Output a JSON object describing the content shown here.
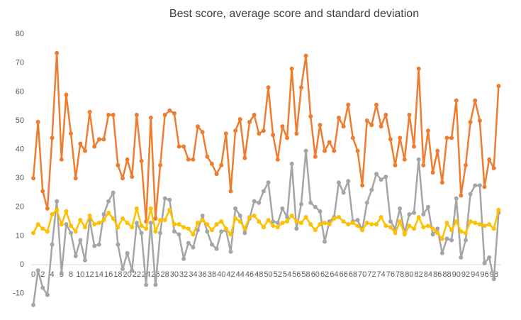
{
  "chart_data": {
    "type": "line",
    "title": "Best score, average score and standard deviation",
    "categories": [
      0,
      null,
      2,
      null,
      4,
      null,
      6,
      null,
      8,
      null,
      10,
      null,
      12,
      null,
      14,
      null,
      16,
      null,
      18,
      null,
      20,
      null,
      22,
      null,
      24,
      null,
      26,
      null,
      28,
      null,
      30,
      null,
      32,
      null,
      34,
      null,
      36,
      null,
      38,
      null,
      40,
      null,
      42,
      null,
      44,
      null,
      46,
      null,
      48,
      null,
      50,
      null,
      52,
      null,
      54,
      null,
      56,
      null,
      58,
      null,
      60,
      null,
      62,
      null,
      64,
      null,
      66,
      null,
      68,
      null,
      70,
      null,
      72,
      null,
      74,
      null,
      76,
      null,
      78,
      null,
      80,
      null,
      82,
      null,
      84,
      null,
      86,
      null,
      88,
      null,
      90,
      null,
      92,
      null,
      94,
      null,
      96,
      null,
      98,
      null
    ],
    "series": [
      {
        "color": "#ED7D31",
        "values": [
          30,
          49.5,
          25.5,
          19.5,
          44,
          73.5,
          36.5,
          59,
          45.5,
          30,
          42,
          39.5,
          53,
          41,
          43.5,
          43.5,
          52,
          52,
          34.5,
          30,
          36.5,
          30.5,
          52,
          36,
          15,
          51,
          16,
          34.5,
          52,
          53.5,
          52.5,
          41,
          41,
          36.5,
          36.5,
          48,
          46,
          37.5,
          35,
          31.5,
          34.5,
          45.5,
          25.5,
          46.5,
          50.5,
          37,
          49.5,
          52,
          45.5,
          46.5,
          61.5,
          45,
          36.5,
          48,
          44,
          68,
          45.5,
          61.5,
          72.5,
          51.5,
          37.5,
          48.5,
          39.5,
          42.5,
          39.5,
          51,
          48,
          55.5,
          44,
          39.5,
          27.5,
          50,
          48.5,
          55.5,
          48,
          52,
          43.5,
          34.5,
          44,
          36.5,
          52,
          41,
          68,
          34.5,
          46.5,
          32,
          39.5,
          28.5,
          44,
          44,
          57,
          24,
          34.5,
          49.5,
          57,
          50,
          27,
          36.5,
          33.5,
          62
        ]
      },
      {
        "color": "#A5A5A5",
        "values": [
          -14,
          -2,
          -8,
          -10.5,
          7,
          22,
          -3,
          14,
          11,
          3,
          8.5,
          1.5,
          15.5,
          6.5,
          7,
          17.5,
          22,
          25,
          7,
          -1.5,
          4,
          -2,
          14.5,
          11,
          -7,
          14.5,
          -7,
          11,
          23,
          22.5,
          11.5,
          10.5,
          2,
          7.5,
          6,
          12,
          17,
          11.5,
          7,
          5.5,
          11.5,
          12,
          4.5,
          19.5,
          17,
          11,
          16,
          22,
          21.5,
          25.5,
          28.5,
          15,
          14.5,
          19.5,
          16.5,
          35,
          12.5,
          21,
          39.5,
          21.5,
          20,
          18.5,
          8,
          15,
          16.5,
          28.5,
          25,
          29,
          15,
          15.5,
          12,
          21.5,
          26,
          31.5,
          29.5,
          30.5,
          15,
          12.5,
          19.5,
          11,
          17.5,
          18,
          36.5,
          17.5,
          20,
          10.5,
          12.5,
          4,
          9,
          8.5,
          23,
          2.5,
          8.5,
          24.5,
          27.5,
          27.5,
          0.5,
          2.5,
          -5,
          18
        ]
      },
      {
        "color": "#FFC000",
        "values": [
          11,
          14,
          12.5,
          11.5,
          17.5,
          19,
          14,
          18.5,
          13.5,
          11.5,
          15.5,
          13,
          17,
          14,
          14.5,
          15.5,
          18,
          16,
          13,
          16,
          14.5,
          13,
          19.5,
          13.5,
          12.5,
          19.5,
          11.5,
          15.5,
          15.5,
          19,
          14,
          14,
          13,
          12.5,
          10.5,
          14.5,
          15.5,
          14,
          12,
          14,
          15,
          12.5,
          10.5,
          16,
          15,
          12.5,
          16.5,
          17,
          15,
          13,
          15.5,
          13.5,
          13,
          14.5,
          15,
          17,
          15,
          14.5,
          16.5,
          14,
          12,
          14,
          14.5,
          14,
          16,
          16.5,
          15,
          14,
          14.5,
          13.5,
          12,
          14.5,
          14,
          14,
          16.5,
          13.5,
          13,
          11,
          15,
          10.5,
          13.5,
          12.5,
          16.5,
          13,
          13.5,
          12.5,
          11,
          9,
          14.5,
          12,
          15,
          11.5,
          11,
          15,
          14.5,
          14,
          13.5,
          14,
          12.5,
          19
        ]
      }
    ],
    "ylim": [
      -15,
      80
    ],
    "yticks": [
      -10,
      0,
      10,
      20,
      30,
      40,
      50,
      60,
      70,
      80
    ],
    "grid": false
  }
}
